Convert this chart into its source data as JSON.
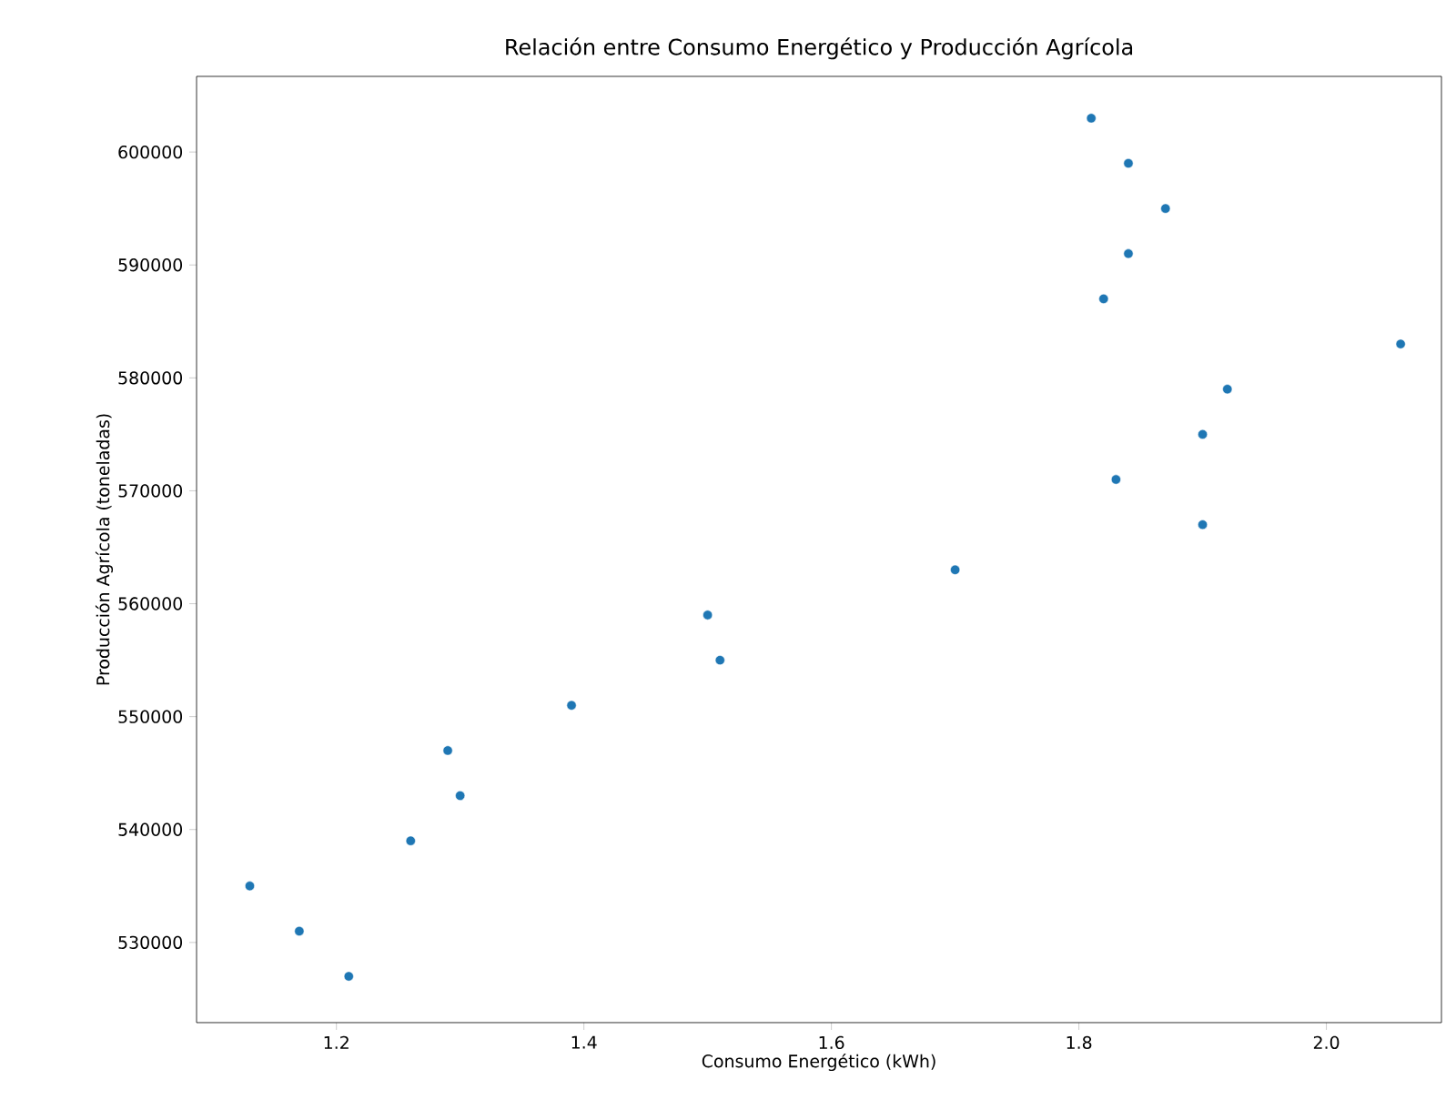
{
  "chart_data": {
    "type": "scatter",
    "title": "Relación entre Consumo Energético y Producción Agrícola",
    "xlabel": "Consumo Energético (kWh)",
    "ylabel": "Producción Agrícola (toneladas)",
    "x": [
      1.81,
      1.84,
      1.87,
      1.84,
      1.82,
      2.06,
      1.92,
      1.9,
      1.83,
      1.9,
      1.7,
      1.5,
      1.51,
      1.39,
      1.29,
      1.3,
      1.26,
      1.13,
      1.17,
      1.21
    ],
    "values": [
      603000,
      599000,
      595000,
      591000,
      587000,
      583000,
      579000,
      575000,
      571000,
      567000,
      563000,
      559000,
      555000,
      551000,
      547000,
      543000,
      539000,
      535000,
      531000,
      527000
    ],
    "color": "#1f77b4",
    "xlim": [
      1.087,
      2.093
    ],
    "ylim": [
      522900,
      606700
    ],
    "xticks": [
      1.2,
      1.4,
      1.6,
      1.8,
      {
        "value": 2.0,
        "label": "2.0"
      }
    ],
    "yticks": [
      530000,
      540000,
      550000,
      560000,
      570000,
      580000,
      590000,
      600000
    ],
    "grid": false
  }
}
